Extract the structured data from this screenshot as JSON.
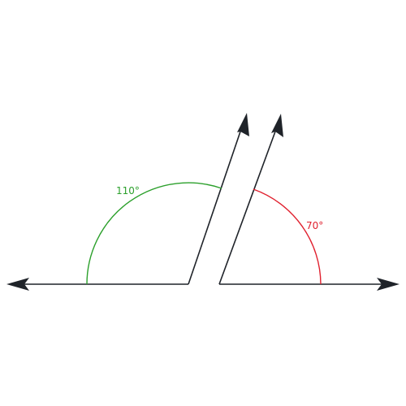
{
  "angles": [
    {
      "label": "110°",
      "degrees": 110,
      "color": "#2ca02c"
    },
    {
      "label": "70°",
      "degrees": 70,
      "color": "#e0202e"
    }
  ],
  "line_color": "#1f2329"
}
